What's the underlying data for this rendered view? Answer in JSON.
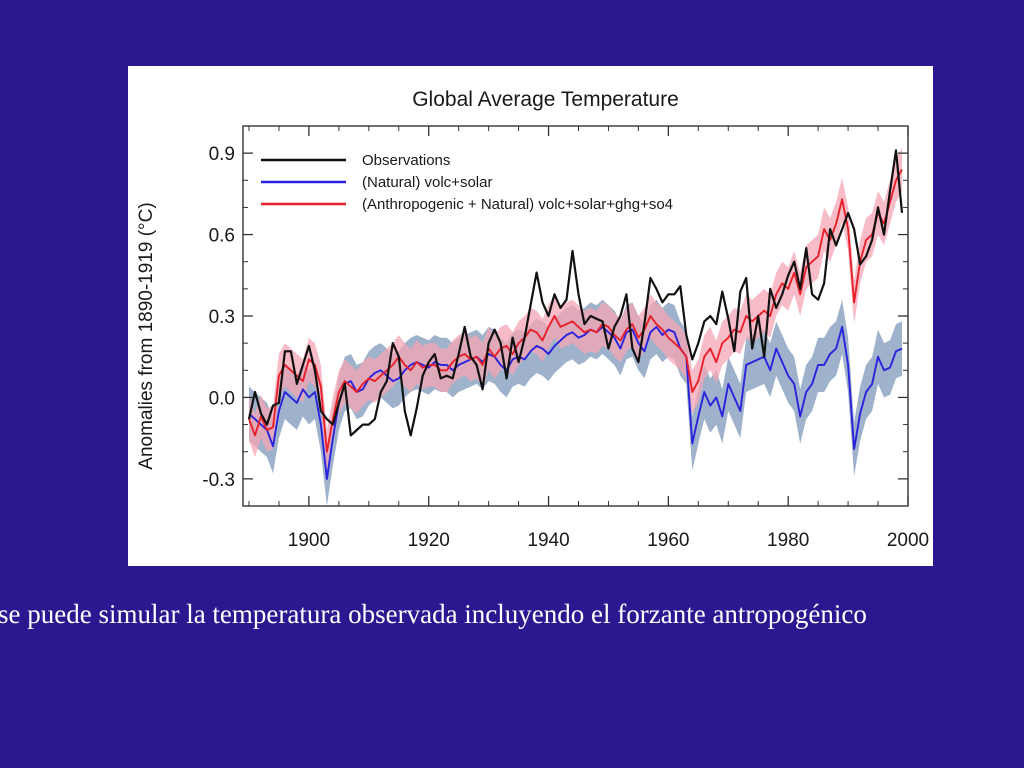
{
  "slide": {
    "caption": "se puede simular la temperatura observada incluyendo el forzante antropogénico"
  },
  "colors": {
    "background": "#2a1890",
    "observations": "#111111",
    "natural": "#2a22dd",
    "anthropogenic": "#e8202a",
    "natural_band": "#9aaec8",
    "anthropogenic_band": "#f4a6b4"
  },
  "chart_data": {
    "type": "line",
    "title": "Global Average Temperature",
    "xlabel": "",
    "ylabel": "Anomalies from 1890-1919 (°C)",
    "xlim": [
      1889,
      2000
    ],
    "ylim": [
      -0.4,
      1.0
    ],
    "xticks": [
      1900,
      1920,
      1940,
      1960,
      1980,
      2000
    ],
    "yticks": [
      -0.3,
      0.0,
      0.3,
      0.6,
      0.9
    ],
    "ytick_labels": [
      "-0.3",
      "0.0",
      "0.3",
      "0.6",
      "0.9"
    ],
    "legend_position": "top-left",
    "x": [
      1890,
      1891,
      1892,
      1893,
      1894,
      1895,
      1896,
      1897,
      1898,
      1899,
      1900,
      1901,
      1902,
      1903,
      1904,
      1905,
      1906,
      1907,
      1908,
      1909,
      1910,
      1911,
      1912,
      1913,
      1914,
      1915,
      1916,
      1917,
      1918,
      1919,
      1920,
      1921,
      1922,
      1923,
      1924,
      1925,
      1926,
      1927,
      1928,
      1929,
      1930,
      1931,
      1932,
      1933,
      1934,
      1935,
      1936,
      1937,
      1938,
      1939,
      1940,
      1941,
      1942,
      1943,
      1944,
      1945,
      1946,
      1947,
      1948,
      1949,
      1950,
      1951,
      1952,
      1953,
      1954,
      1955,
      1956,
      1957,
      1958,
      1959,
      1960,
      1961,
      1962,
      1963,
      1964,
      1965,
      1966,
      1967,
      1968,
      1969,
      1970,
      1971,
      1972,
      1973,
      1974,
      1975,
      1976,
      1977,
      1978,
      1979,
      1980,
      1981,
      1982,
      1983,
      1984,
      1985,
      1986,
      1987,
      1988,
      1989,
      1990,
      1991,
      1992,
      1993,
      1994,
      1995,
      1996,
      1997,
      1998,
      1999
    ],
    "series": [
      {
        "name": "Observations",
        "color": "#111111",
        "values": [
          -0.08,
          0.02,
          -0.06,
          -0.1,
          -0.03,
          -0.02,
          0.17,
          0.17,
          0.05,
          0.12,
          0.19,
          0.1,
          -0.05,
          -0.08,
          -0.1,
          -0.02,
          0.05,
          -0.14,
          -0.12,
          -0.1,
          -0.1,
          -0.08,
          0.02,
          0.06,
          0.2,
          0.15,
          -0.05,
          -0.14,
          -0.04,
          0.08,
          0.13,
          0.16,
          0.07,
          0.08,
          0.07,
          0.16,
          0.26,
          0.15,
          0.12,
          0.03,
          0.2,
          0.25,
          0.2,
          0.07,
          0.22,
          0.13,
          0.22,
          0.34,
          0.46,
          0.35,
          0.3,
          0.38,
          0.33,
          0.36,
          0.54,
          0.38,
          0.27,
          0.3,
          0.29,
          0.28,
          0.18,
          0.26,
          0.3,
          0.38,
          0.18,
          0.13,
          0.27,
          0.44,
          0.4,
          0.35,
          0.38,
          0.38,
          0.41,
          0.23,
          0.14,
          0.2,
          0.28,
          0.3,
          0.27,
          0.39,
          0.29,
          0.17,
          0.39,
          0.44,
          0.18,
          0.3,
          0.15,
          0.4,
          0.33,
          0.38,
          0.45,
          0.5,
          0.4,
          0.55,
          0.38,
          0.36,
          0.42,
          0.62,
          0.56,
          0.62,
          0.68,
          0.62,
          0.49,
          0.52,
          0.58,
          0.7,
          0.6,
          0.76,
          0.91,
          0.68
        ]
      },
      {
        "name": "(Natural) volc+solar",
        "color": "#2a22dd",
        "values": [
          -0.06,
          -0.08,
          -0.1,
          -0.12,
          -0.18,
          -0.05,
          0.02,
          0.0,
          -0.02,
          0.03,
          0.0,
          0.02,
          -0.1,
          -0.3,
          -0.15,
          -0.02,
          0.05,
          0.06,
          0.02,
          0.03,
          0.07,
          0.09,
          0.1,
          0.08,
          0.06,
          0.07,
          0.1,
          0.12,
          0.13,
          0.12,
          0.11,
          0.13,
          0.12,
          0.12,
          0.1,
          0.12,
          0.13,
          0.14,
          0.15,
          0.13,
          0.16,
          0.15,
          0.12,
          0.1,
          0.14,
          0.15,
          0.14,
          0.17,
          0.19,
          0.18,
          0.16,
          0.19,
          0.21,
          0.23,
          0.24,
          0.22,
          0.23,
          0.25,
          0.24,
          0.26,
          0.24,
          0.22,
          0.18,
          0.24,
          0.25,
          0.2,
          0.17,
          0.24,
          0.26,
          0.23,
          0.25,
          0.24,
          0.18,
          0.15,
          -0.17,
          -0.07,
          0.02,
          -0.03,
          0.0,
          -0.07,
          0.05,
          0.0,
          -0.05,
          0.12,
          0.13,
          0.14,
          0.15,
          0.1,
          0.18,
          0.13,
          0.08,
          0.05,
          -0.07,
          0.02,
          0.05,
          0.12,
          0.12,
          0.16,
          0.18,
          0.26,
          0.12,
          -0.19,
          -0.06,
          0.02,
          0.05,
          0.15,
          0.1,
          0.11,
          0.17,
          0.18
        ]
      },
      {
        "name": "(Anthropogenic + Natural) volc+solar+ghg+so4",
        "color": "#e8202a",
        "values": [
          -0.08,
          -0.14,
          -0.07,
          -0.12,
          -0.11,
          0.08,
          0.12,
          0.1,
          0.08,
          0.06,
          0.14,
          0.12,
          0.04,
          -0.2,
          -0.08,
          0.02,
          0.06,
          0.04,
          0.02,
          0.05,
          0.07,
          0.06,
          0.08,
          0.1,
          0.12,
          0.15,
          0.12,
          0.1,
          0.13,
          0.11,
          0.12,
          0.12,
          0.1,
          0.1,
          0.13,
          0.15,
          0.16,
          0.14,
          0.15,
          0.12,
          0.18,
          0.15,
          0.18,
          0.19,
          0.16,
          0.2,
          0.22,
          0.25,
          0.24,
          0.21,
          0.26,
          0.3,
          0.26,
          0.27,
          0.28,
          0.26,
          0.24,
          0.25,
          0.24,
          0.27,
          0.26,
          0.23,
          0.21,
          0.25,
          0.27,
          0.22,
          0.25,
          0.3,
          0.27,
          0.25,
          0.22,
          0.2,
          0.18,
          0.15,
          0.02,
          0.06,
          0.15,
          0.18,
          0.13,
          0.2,
          0.22,
          0.25,
          0.24,
          0.3,
          0.28,
          0.3,
          0.32,
          0.3,
          0.38,
          0.42,
          0.4,
          0.46,
          0.38,
          0.48,
          0.5,
          0.52,
          0.62,
          0.58,
          0.64,
          0.73,
          0.62,
          0.35,
          0.5,
          0.58,
          0.6,
          0.68,
          0.64,
          0.72,
          0.8,
          0.84
        ]
      }
    ],
    "bands": [
      {
        "series": "(Natural) volc+solar",
        "color": "#9aaec8",
        "half_width": 0.1
      },
      {
        "series": "(Anthropogenic + Natural) volc+solar+ghg+so4",
        "color": "#f4a6b4",
        "half_width": 0.08
      }
    ]
  }
}
